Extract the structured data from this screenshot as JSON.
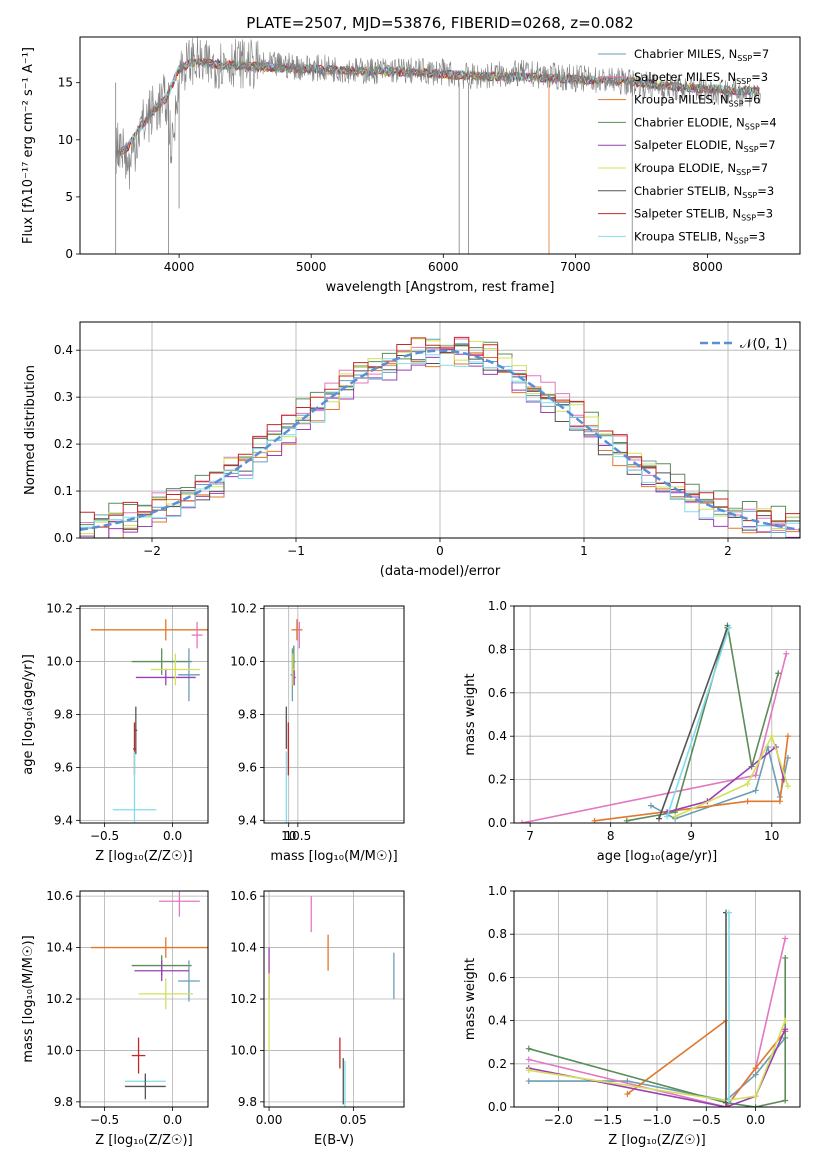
{
  "figure": {
    "title": "PLATE=2507, MJD=53876, FIBERID=0268, z=0.082"
  },
  "series_colors": [
    "#6a9fb5",
    "#e377c2",
    "#e0782c",
    "#5b8c5a",
    "#9b3fb5",
    "#d4e157",
    "#555555",
    "#c62828",
    "#80deea"
  ],
  "chart_data": [
    {
      "id": "spectrum",
      "type": "line",
      "xlabel": "wavelength [Angstrom, rest frame]",
      "ylabel": "Flux [fλ10⁻¹⁷ erg cm⁻² s⁻¹ A⁻¹]",
      "xlim": [
        3250,
        8700
      ],
      "ylim": [
        0,
        19
      ],
      "xticks": [
        4000,
        5000,
        6000,
        7000,
        8000
      ],
      "yticks": [
        0,
        5,
        10,
        15
      ],
      "grid": false,
      "legend_position": "top-right",
      "legend": [
        {
          "label": "Chabrier MILES, N",
          "sub": "SSP",
          "suffix": "=7"
        },
        {
          "label": "Salpeter MILES, N",
          "sub": "SSP",
          "suffix": "=3"
        },
        {
          "label": "Kroupa MILES, N",
          "sub": "SSP",
          "suffix": "=6"
        },
        {
          "label": "Chabrier ELODIE, N",
          "sub": "SSP",
          "suffix": "=4"
        },
        {
          "label": "Salpeter ELODIE, N",
          "sub": "SSP",
          "suffix": "=7"
        },
        {
          "label": "Kroupa ELODIE, N",
          "sub": "SSP",
          "suffix": "=7"
        },
        {
          "label": "Chabrier STELIB, N",
          "sub": "SSP",
          "suffix": "=3"
        },
        {
          "label": "Salpeter STELIB, N",
          "sub": "SSP",
          "suffix": "=3"
        },
        {
          "label": "Kroupa STELIB, N",
          "sub": "SSP",
          "suffix": "=3"
        }
      ],
      "data_color": "#808080",
      "data_x": [
        3520,
        3560,
        3620,
        3700,
        3800,
        3900,
        3950,
        4000,
        4100,
        4200,
        4400,
        4600,
        4800,
        5000,
        5200,
        5400,
        5600,
        5800,
        6000,
        6200,
        6400,
        6600,
        6800,
        7000,
        7200,
        7400,
        7600,
        7800,
        8000,
        8200,
        8400
      ],
      "data_y": [
        9.0,
        10.0,
        7.5,
        11.0,
        12.5,
        13.5,
        9.0,
        16.0,
        17.0,
        16.5,
        16.8,
        16.5,
        16.5,
        16.3,
        16.2,
        16.0,
        16.1,
        16.0,
        15.9,
        15.5,
        15.7,
        15.8,
        15.6,
        15.4,
        15.2,
        15.1,
        14.7,
        14.5,
        14.3,
        14.2,
        14.0
      ],
      "model_x": [
        3520,
        3600,
        3700,
        3800,
        3900,
        4000,
        4100,
        4300,
        4600,
        5000,
        5400,
        5800,
        6200,
        6600,
        7000,
        7400,
        7800,
        8200
      ],
      "model_y": [
        8.8,
        9.2,
        11.0,
        12.5,
        13.6,
        16.2,
        16.8,
        16.6,
        16.4,
        16.2,
        16.0,
        15.9,
        15.6,
        15.5,
        15.3,
        15.1,
        14.6,
        14.3
      ]
    },
    {
      "id": "residual_hist",
      "type": "bar",
      "xlabel": "(data-model)/error",
      "ylabel": "Normed distribution",
      "xlim": [
        -2.5,
        2.5
      ],
      "ylim": [
        0,
        0.46
      ],
      "xticks": [
        -2,
        -1,
        0,
        1,
        2
      ],
      "xtick_labels": [
        "−2",
        "−1",
        "0",
        "1",
        "2"
      ],
      "yticks": [
        0.0,
        0.1,
        0.2,
        0.3,
        0.4
      ],
      "grid": true,
      "legend_position": "top-right",
      "legend": [
        {
          "label": "𝒩(0, 1)"
        }
      ],
      "normal_color": "#5a8fd8",
      "bin_width": 0.1,
      "hist_offsets": [
        0.0,
        0.012,
        -0.01,
        0.018,
        -0.016,
        0.008,
        -0.006,
        0.014,
        -0.012
      ]
    },
    {
      "id": "age_vs_Z",
      "type": "scatter",
      "xlabel": "Z [log₁₀(Z/Z☉)]",
      "ylabel": "age  [log₁₀(age/yr)]",
      "xlim": [
        -0.68,
        0.26
      ],
      "ylim": [
        9.39,
        10.21
      ],
      "xticks": [
        -0.5,
        0.0
      ],
      "xtick_labels": [
        "−0.5",
        "0.0"
      ],
      "yticks": [
        9.4,
        9.6,
        9.8,
        10.0,
        10.2
      ],
      "points": [
        {
          "x": -0.05,
          "y": 10.12,
          "xerr": 0.55,
          "yerr": 0.04,
          "s": 2
        },
        {
          "x": 0.18,
          "y": 10.1,
          "xerr": 0.04,
          "yerr": 0.05,
          "s": 1
        },
        {
          "x": -0.08,
          "y": 10.0,
          "xerr": 0.22,
          "yerr": 0.05,
          "s": 3
        },
        {
          "x": 0.12,
          "y": 9.95,
          "xerr": 0.08,
          "yerr": 0.1,
          "s": 0
        },
        {
          "x": -0.05,
          "y": 9.94,
          "xerr": 0.22,
          "yerr": 0.03,
          "s": 4
        },
        {
          "x": 0.02,
          "y": 9.97,
          "xerr": 0.18,
          "yerr": 0.06,
          "s": 5
        },
        {
          "x": -0.27,
          "y": 9.74,
          "xerr": 0.01,
          "yerr": 0.09,
          "s": 6
        },
        {
          "x": -0.28,
          "y": 9.67,
          "xerr": 0.01,
          "yerr": 0.1,
          "s": 7
        },
        {
          "x": -0.28,
          "y": 9.44,
          "xerr": 0.16,
          "yerr": 0.22,
          "s": 8
        }
      ]
    },
    {
      "id": "age_vs_mass",
      "type": "scatter",
      "xlabel": "mass [log₁₀(M/M☉)]",
      "ylabel": "",
      "xlim": [
        8.65,
        16.3
      ],
      "ylim": [
        9.39,
        10.21
      ],
      "xticks": [
        10.0,
        10.5
      ],
      "yticks": [
        9.4,
        9.6,
        9.8,
        10.0,
        10.2
      ],
      "points": [
        {
          "x": 10.45,
          "y": 10.12,
          "xerr": 0.3,
          "yerr": 0.04,
          "s": 2
        },
        {
          "x": 10.58,
          "y": 10.1,
          "xerr": 0.02,
          "yerr": 0.05,
          "s": 1
        },
        {
          "x": 10.28,
          "y": 10.0,
          "xerr": 0.08,
          "yerr": 0.06,
          "s": 3
        },
        {
          "x": 10.2,
          "y": 9.95,
          "xerr": 0.1,
          "yerr": 0.1,
          "s": 0
        },
        {
          "x": 10.3,
          "y": 9.94,
          "xerr": 0.08,
          "yerr": 0.03,
          "s": 4
        },
        {
          "x": 10.23,
          "y": 9.97,
          "xerr": 0.1,
          "yerr": 0.06,
          "s": 5
        },
        {
          "x": 9.87,
          "y": 9.75,
          "xerr": 0.01,
          "yerr": 0.08,
          "s": 6
        },
        {
          "x": 9.98,
          "y": 9.67,
          "xerr": 0.01,
          "yerr": 0.1,
          "s": 7
        },
        {
          "x": 9.87,
          "y": 9.44,
          "xerr": 0.04,
          "yerr": 0.22,
          "s": 8
        }
      ]
    },
    {
      "id": "weight_vs_age",
      "type": "line",
      "xlabel": "age  [log₁₀(age/yr)]",
      "ylabel": "mass weight",
      "xlim": [
        6.8,
        10.35
      ],
      "ylim": [
        0,
        1.0
      ],
      "xticks": [
        7,
        8,
        9,
        10
      ],
      "yticks": [
        0.0,
        0.2,
        0.4,
        0.6,
        0.8,
        1.0
      ],
      "grid": true,
      "series": [
        {
          "s": 0,
          "x": [
            8.5,
            8.8,
            9.8,
            9.95,
            10.1,
            10.2
          ],
          "y": [
            0.08,
            0.02,
            0.15,
            0.35,
            0.12,
            0.3
          ]
        },
        {
          "s": 1,
          "x": [
            6.9,
            9.8,
            10.18
          ],
          "y": [
            0.0,
            0.22,
            0.78
          ]
        },
        {
          "s": 2,
          "x": [
            7.8,
            9.7,
            10.1,
            10.2
          ],
          "y": [
            0.01,
            0.1,
            0.1,
            0.4
          ]
        },
        {
          "s": 3,
          "x": [
            8.2,
            8.8,
            9.45,
            9.75,
            10.08
          ],
          "y": [
            0.01,
            0.05,
            0.91,
            0.26,
            0.69
          ]
        },
        {
          "s": 4,
          "x": [
            8.7,
            9.2,
            10.05,
            10.15
          ],
          "y": [
            0.05,
            0.1,
            0.35,
            0.2
          ]
        },
        {
          "s": 5,
          "x": [
            8.8,
            9.7,
            10.0,
            10.2
          ],
          "y": [
            0.03,
            0.18,
            0.4,
            0.17
          ]
        },
        {
          "s": 6,
          "x": [
            8.6,
            9.45
          ],
          "y": [
            0.02,
            0.9
          ]
        },
        {
          "s": 8,
          "x": [
            8.7,
            9.47
          ],
          "y": [
            0.03,
            0.9
          ]
        }
      ]
    },
    {
      "id": "mass_vs_Z",
      "type": "scatter",
      "xlabel": "Z [log₁₀(Z/Z☉)]",
      "ylabel": "mass [log₁₀(M/M☉)]",
      "xlim": [
        -0.68,
        0.26
      ],
      "ylim": [
        9.78,
        10.62
      ],
      "xticks": [
        -0.5,
        0.0
      ],
      "xtick_labels": [
        "−0.5",
        "0.0"
      ],
      "yticks": [
        9.8,
        10.0,
        10.2,
        10.4,
        10.6
      ],
      "points": [
        {
          "x": -0.05,
          "y": 10.4,
          "xerr": 0.55,
          "yerr": 0.04,
          "s": 2
        },
        {
          "x": 0.05,
          "y": 10.58,
          "xerr": 0.15,
          "yerr": 0.06,
          "s": 1
        },
        {
          "x": -0.08,
          "y": 10.33,
          "xerr": 0.22,
          "yerr": 0.04,
          "s": 3
        },
        {
          "x": 0.12,
          "y": 10.27,
          "xerr": 0.08,
          "yerr": 0.08,
          "s": 0
        },
        {
          "x": -0.08,
          "y": 10.31,
          "xerr": 0.2,
          "yerr": 0.04,
          "s": 4
        },
        {
          "x": -0.05,
          "y": 10.22,
          "xerr": 0.2,
          "yerr": 0.06,
          "s": 5
        },
        {
          "x": -0.25,
          "y": 9.98,
          "xerr": 0.05,
          "yerr": 0.07,
          "s": 7
        },
        {
          "x": -0.2,
          "y": 9.88,
          "xerr": 0.15,
          "yerr": 0.03,
          "s": 8
        },
        {
          "x": -0.2,
          "y": 9.86,
          "xerr": 0.15,
          "yerr": 0.05,
          "s": 6
        }
      ]
    },
    {
      "id": "mass_vs_ebv",
      "type": "scatter",
      "xlabel": "E(B-V)",
      "ylabel": "",
      "xlim": [
        -0.003,
        0.08
      ],
      "ylim": [
        9.78,
        10.62
      ],
      "xticks": [
        0.0,
        0.05
      ],
      "xtick_labels": [
        "0.00",
        "0.05"
      ],
      "yticks": [
        9.8,
        10.0,
        10.2,
        10.4,
        10.6
      ],
      "points": [
        {
          "x": 0.025,
          "y": 10.53,
          "xerr": 0.0,
          "yerr": 0.07,
          "s": 1
        },
        {
          "x": 0.035,
          "y": 10.38,
          "xerr": 0.0,
          "yerr": 0.07,
          "s": 2
        },
        {
          "x": 0.074,
          "y": 10.29,
          "xerr": 0.0,
          "yerr": 0.09,
          "s": 0
        },
        {
          "x": 0.0,
          "y": 10.3,
          "xerr": 0.0,
          "yerr": 0.1,
          "s": 4
        },
        {
          "x": 0.0,
          "y": 10.15,
          "xerr": 0.0,
          "yerr": 0.15,
          "s": 5
        },
        {
          "x": 0.042,
          "y": 9.99,
          "xerr": 0.0,
          "yerr": 0.06,
          "s": 7
        },
        {
          "x": 0.044,
          "y": 9.88,
          "xerr": 0.0,
          "yerr": 0.09,
          "s": 6
        },
        {
          "x": 0.045,
          "y": 9.87,
          "xerr": 0.0,
          "yerr": 0.09,
          "s": 8
        }
      ]
    },
    {
      "id": "weight_vs_Z",
      "type": "line",
      "xlabel": "Z [log₁₀(Z/Z☉)]",
      "ylabel": "mass weight",
      "xlim": [
        -2.45,
        0.45
      ],
      "ylim": [
        0,
        1.0
      ],
      "xticks": [
        -2.0,
        -1.5,
        -1.0,
        -0.5,
        0.0
      ],
      "xtick_labels": [
        "−2.0",
        "−1.5",
        "−1.0",
        "−0.5",
        "0.0"
      ],
      "yticks": [
        0.0,
        0.2,
        0.4,
        0.6,
        0.8,
        1.0
      ],
      "grid": true,
      "series": [
        {
          "s": 0,
          "x": [
            -2.3,
            -1.3,
            -0.3,
            0.0,
            0.3
          ],
          "y": [
            0.12,
            0.12,
            0.03,
            0.15,
            0.32
          ]
        },
        {
          "s": 1,
          "x": [
            -2.3,
            -0.3,
            0.0,
            0.3
          ],
          "y": [
            0.22,
            0.0,
            0.18,
            0.78
          ]
        },
        {
          "s": 2,
          "x": [
            -1.3,
            -0.3,
            -0.3,
            0.0,
            0.3
          ],
          "y": [
            0.06,
            0.4,
            0.0,
            0.18,
            0.35
          ]
        },
        {
          "s": 3,
          "x": [
            -2.3,
            -0.3,
            0.0,
            0.3,
            0.3
          ],
          "y": [
            0.27,
            0.02,
            0.0,
            0.03,
            0.69
          ]
        },
        {
          "s": 4,
          "x": [
            -2.3,
            -0.3,
            0.0,
            0.3
          ],
          "y": [
            0.18,
            0.0,
            0.05,
            0.36
          ]
        },
        {
          "s": 5,
          "x": [
            -2.3,
            -0.3,
            0.0,
            0.3
          ],
          "y": [
            0.17,
            0.03,
            0.05,
            0.4
          ]
        },
        {
          "s": 6,
          "x": [
            -0.3,
            -0.3
          ],
          "y": [
            0.02,
            0.9
          ]
        },
        {
          "s": 8,
          "x": [
            -0.27,
            -0.27
          ],
          "y": [
            0.03,
            0.9
          ]
        }
      ]
    }
  ]
}
